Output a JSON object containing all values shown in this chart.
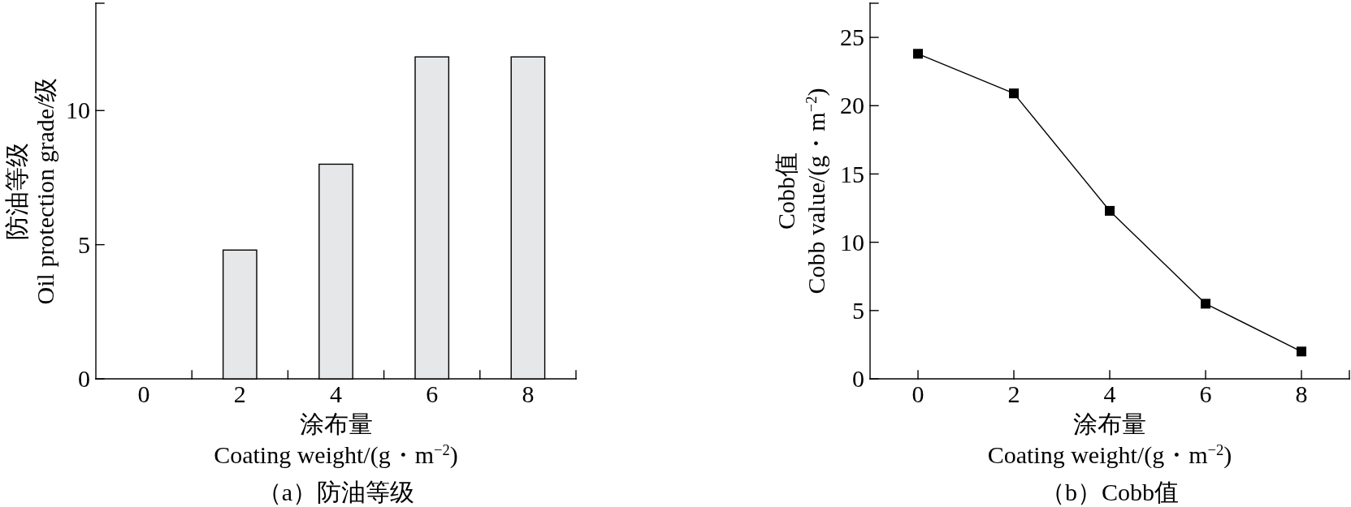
{
  "chart_data": [
    {
      "type": "bar",
      "title": "（a）防油等级",
      "xlabel": "涂布量\nCoating weight/(g・m$^{−2}$)",
      "ylabel": "防油等级\nOil protection grade/级",
      "categories": [
        "0",
        "2",
        "4",
        "6",
        "8"
      ],
      "values": [
        0,
        4.8,
        8,
        12,
        12
      ],
      "color": "#e6e7e9",
      "ylim": [
        0,
        14
      ],
      "yticks": [
        0,
        5,
        10,
        {
          "value": 14,
          "label": null
        }
      ]
    },
    {
      "type": "line",
      "title": "（b）Cobb值",
      "xlabel": "涂布量\nCoating weight/(g・m$^{−2}$)",
      "ylabel": "Cobb值\nCobb value/(g・m$^{−2}$)",
      "x": [
        0,
        2,
        4,
        6,
        8
      ],
      "values": [
        23.8,
        20.9,
        12.3,
        5.5,
        2.0
      ],
      "color": "#000000",
      "marker": "square",
      "xlim": [
        -1,
        9
      ],
      "xticks": [
        0,
        2,
        4,
        6,
        8,
        {
          "value": 9,
          "label": null
        }
      ],
      "ylim": [
        0,
        27.5
      ],
      "yticks": [
        0,
        5,
        10,
        15,
        20,
        25,
        {
          "value": 27.5,
          "label": null
        }
      ]
    }
  ]
}
